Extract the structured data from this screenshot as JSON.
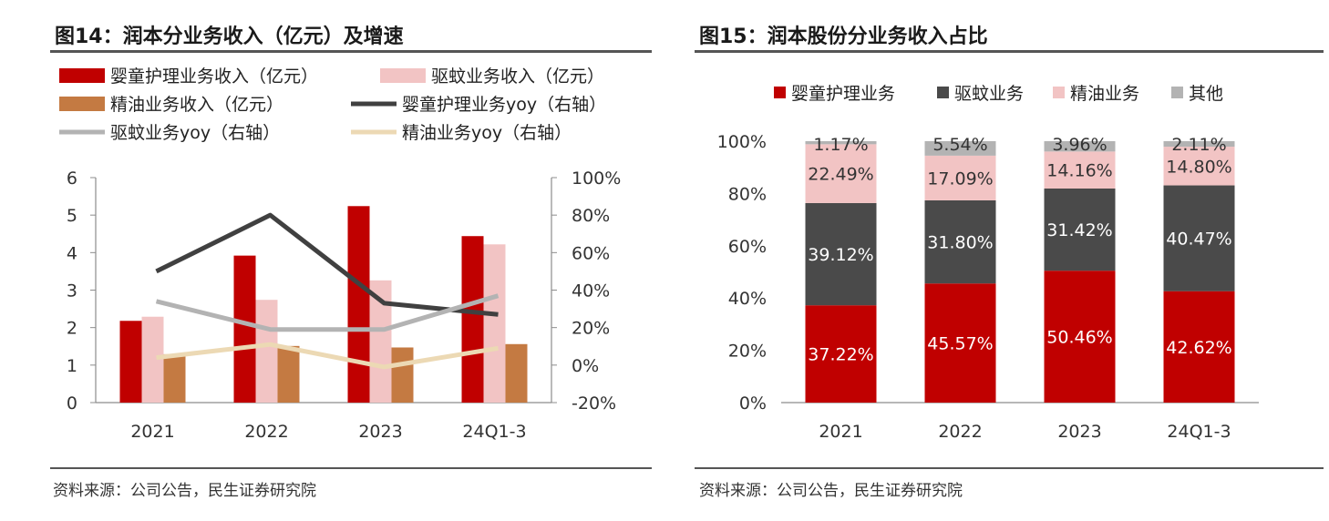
{
  "colors": {
    "baby": "#c00000",
    "mosquito": "#f2c4c4",
    "oil": "#c47a42",
    "baby_yoy": "#404040",
    "mosquito_yoy": "#b3b3b3",
    "oil_yoy": "#ecd9b4",
    "share_baby": "#c00000",
    "share_mosquito": "#4a4a4a",
    "share_oil": "#f2c4c4",
    "share_other": "#b3b3b3"
  },
  "left": {
    "title": "图14：润本分业务收入（亿元）及增速",
    "source": "资料来源：公司公告，民生证券研究院"
  },
  "right": {
    "title": "图15：润本股份分业务收入占比",
    "source": "资料来源：公司公告，民生证券研究院"
  },
  "chart_data": [
    {
      "type": "bar",
      "title": "图14：润本分业务收入（亿元）及增速",
      "categories": [
        "2021",
        "2022",
        "2023",
        "24Q1-3"
      ],
      "ylim": [
        0,
        6
      ],
      "yticks": [
        "0",
        "1",
        "2",
        "3",
        "4",
        "5",
        "6"
      ],
      "y2lim": [
        -20,
        100
      ],
      "y2ticks": [
        "-20%",
        "0%",
        "20%",
        "40%",
        "60%",
        "80%",
        "100%"
      ],
      "legend_position": "top",
      "series": [
        {
          "name": "婴童护理业务收入（亿元）",
          "kind": "bar",
          "axis": "left",
          "values": [
            2.18,
            3.92,
            5.24,
            4.44
          ]
        },
        {
          "name": "驱蚊业务收入（亿元）",
          "kind": "bar",
          "axis": "left",
          "values": [
            2.29,
            2.74,
            3.26,
            4.22
          ]
        },
        {
          "name": "精油业务收入（亿元）",
          "kind": "bar",
          "axis": "left",
          "values": [
            1.29,
            1.51,
            1.47,
            1.56
          ]
        },
        {
          "name": "婴童护理业务yoy（右轴）",
          "kind": "line",
          "axis": "right",
          "values": [
            50,
            80,
            33,
            27
          ]
        },
        {
          "name": "驱蚊业务yoy（右轴）",
          "kind": "line",
          "axis": "right",
          "values": [
            34,
            19,
            19,
            37
          ]
        },
        {
          "name": "精油业务yoy（右轴）",
          "kind": "line",
          "axis": "right",
          "values": [
            4,
            11,
            -1,
            9
          ]
        }
      ]
    },
    {
      "type": "bar",
      "stacked": true,
      "title": "图15：润本股份分业务收入占比",
      "categories": [
        "2021",
        "2022",
        "2023",
        "24Q1-3"
      ],
      "ylim": [
        0,
        100
      ],
      "yticks": [
        "0%",
        "20%",
        "40%",
        "60%",
        "80%",
        "100%"
      ],
      "legend_position": "top",
      "series": [
        {
          "name": "婴童护理业务",
          "values": [
            37.22,
            45.57,
            50.46,
            42.62
          ],
          "labels": [
            "37.22%",
            "45.57%",
            "50.46%",
            "42.62%"
          ]
        },
        {
          "name": "驱蚊业务",
          "values": [
            39.12,
            31.8,
            31.42,
            40.47
          ],
          "labels": [
            "39.12%",
            "31.80%",
            "31.42%",
            "40.47%"
          ]
        },
        {
          "name": "精油业务",
          "values": [
            22.49,
            17.09,
            14.16,
            14.8
          ],
          "labels": [
            "22.49%",
            "17.09%",
            "14.16%",
            "14.80%"
          ]
        },
        {
          "name": "其他",
          "values": [
            1.17,
            5.54,
            3.96,
            2.11
          ],
          "labels": [
            "1.17%",
            "5.54%",
            "3.96%",
            "2.11%"
          ]
        }
      ]
    }
  ]
}
